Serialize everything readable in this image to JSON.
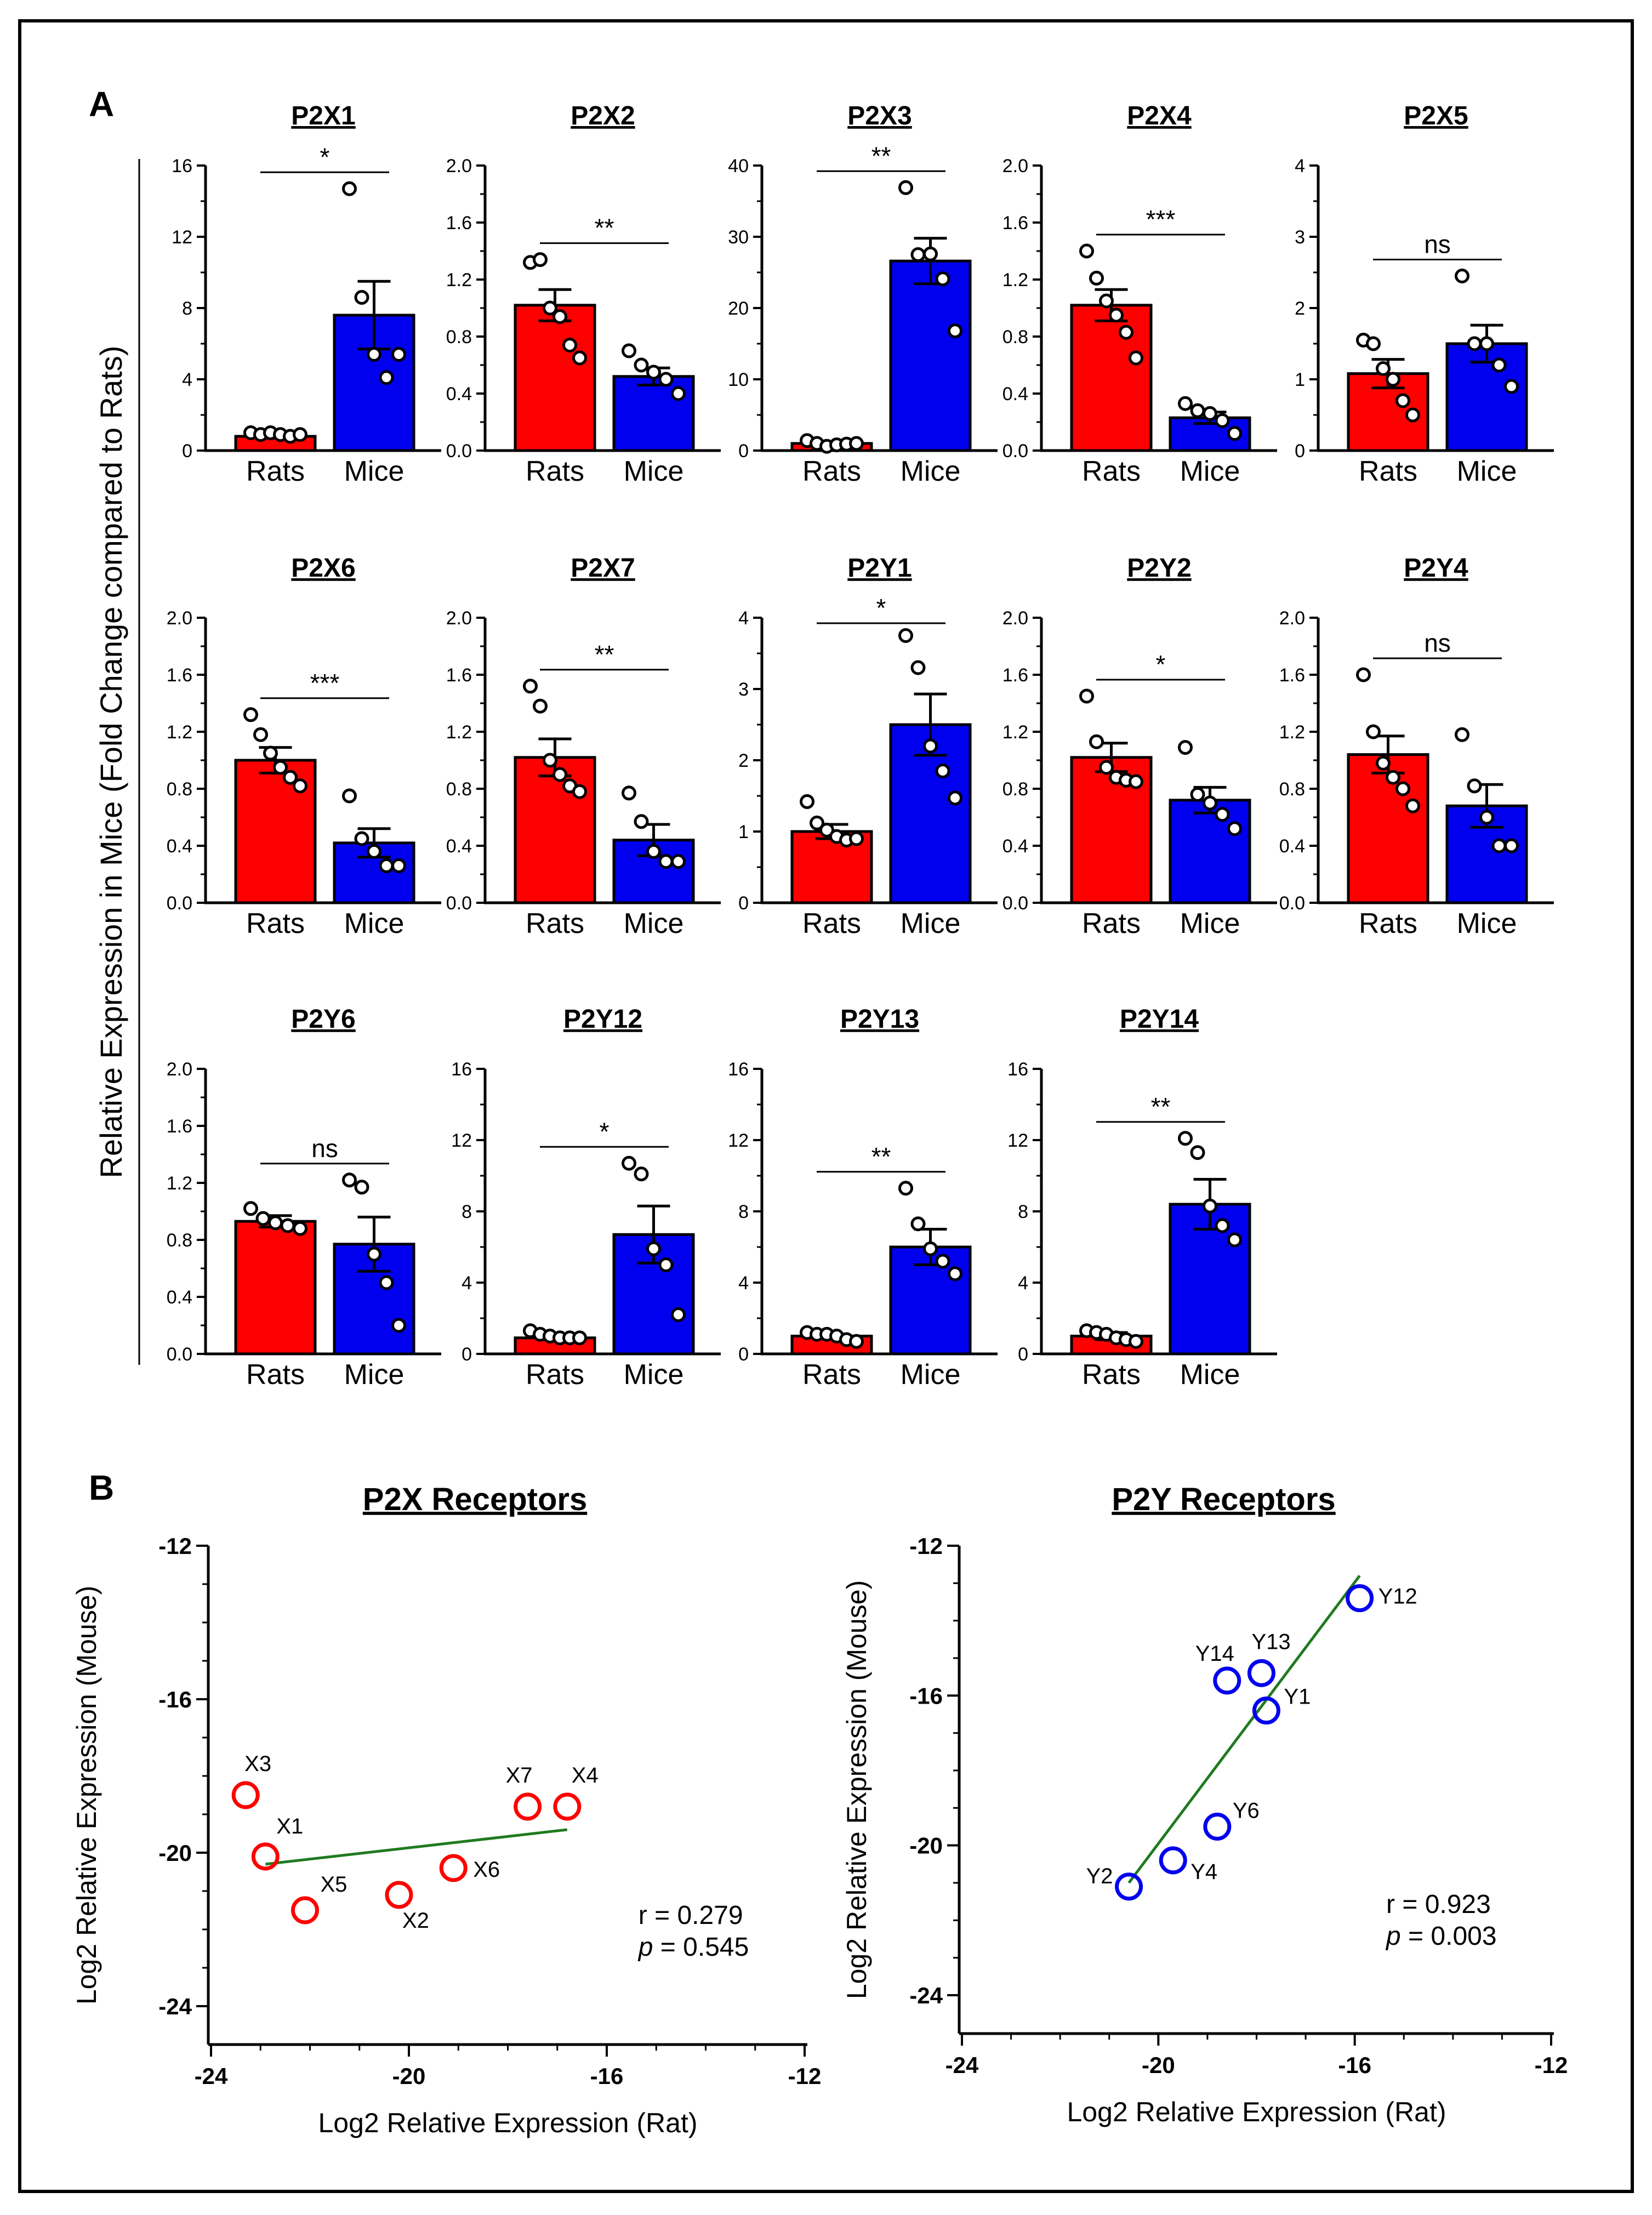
{
  "panel_a_label": "A",
  "panel_b_label": "B",
  "main_ylabel": "Relative Expression in Mice  (Fold Change compared to Rats)",
  "colors": {
    "rats": "#ff0000",
    "mice": "#0000ee",
    "fit": "#1f7a1f"
  },
  "chart_data": [
    {
      "type": "bar",
      "title": "P2X1",
      "categories": [
        "Rats",
        "Mice"
      ],
      "ylim": [
        0,
        16
      ],
      "yticks": [
        "0",
        "4",
        "8",
        "12",
        "16"
      ],
      "significance": "*",
      "series": [
        {
          "name": "Rats",
          "mean": 0.8,
          "sem": 0.1,
          "points": [
            1.0,
            0.9,
            1.0,
            0.9,
            0.8,
            0.9
          ]
        },
        {
          "name": "Mice",
          "mean": 7.6,
          "sem": 1.9,
          "points": [
            14.7,
            8.6,
            5.4,
            4.1,
            5.4
          ]
        }
      ]
    },
    {
      "type": "bar",
      "title": "P2X2",
      "categories": [
        "Rats",
        "Mice"
      ],
      "ylim": [
        0,
        2.0
      ],
      "yticks": [
        "0.0",
        "0.4",
        "0.8",
        "1.2",
        "1.6",
        "2.0"
      ],
      "significance": "**",
      "series": [
        {
          "name": "Rats",
          "mean": 1.02,
          "sem": 0.11,
          "points": [
            1.32,
            1.34,
            1.0,
            0.94,
            0.74,
            0.65
          ]
        },
        {
          "name": "Mice",
          "mean": 0.52,
          "sem": 0.06,
          "points": [
            0.7,
            0.6,
            0.55,
            0.5,
            0.4
          ]
        }
      ]
    },
    {
      "type": "bar",
      "title": "P2X3",
      "categories": [
        "Rats",
        "Mice"
      ],
      "ylim": [
        0,
        40
      ],
      "yticks": [
        "0",
        "10",
        "20",
        "30",
        "40"
      ],
      "significance": "**",
      "series": [
        {
          "name": "Rats",
          "mean": 1.0,
          "sem": 0.2,
          "points": [
            1.4,
            1.0,
            0.6,
            0.8,
            0.9,
            1.0
          ]
        },
        {
          "name": "Mice",
          "mean": 26.6,
          "sem": 3.2,
          "points": [
            36.9,
            27.5,
            27.6,
            24.1,
            16.8
          ]
        }
      ]
    },
    {
      "type": "bar",
      "title": "P2X4",
      "categories": [
        "Rats",
        "Mice"
      ],
      "ylim": [
        0,
        2.0
      ],
      "yticks": [
        "0.0",
        "0.4",
        "0.8",
        "1.2",
        "1.6",
        "2.0"
      ],
      "significance": "***",
      "series": [
        {
          "name": "Rats",
          "mean": 1.02,
          "sem": 0.11,
          "points": [
            1.4,
            1.21,
            1.05,
            0.95,
            0.83,
            0.65
          ]
        },
        {
          "name": "Mice",
          "mean": 0.23,
          "sem": 0.04,
          "points": [
            0.33,
            0.28,
            0.26,
            0.21,
            0.12
          ]
        }
      ]
    },
    {
      "type": "bar",
      "title": "P2X5",
      "categories": [
        "Rats",
        "Mice"
      ],
      "ylim": [
        0,
        4
      ],
      "yticks": [
        "0",
        "1",
        "2",
        "3",
        "4"
      ],
      "significance": "ns",
      "series": [
        {
          "name": "Rats",
          "mean": 1.08,
          "sem": 0.2,
          "points": [
            1.55,
            1.5,
            1.15,
            1.0,
            0.7,
            0.5
          ]
        },
        {
          "name": "Mice",
          "mean": 1.5,
          "sem": 0.26,
          "points": [
            2.45,
            1.5,
            1.5,
            1.2,
            0.9
          ]
        }
      ]
    },
    {
      "type": "bar",
      "title": "P2X6",
      "categories": [
        "Rats",
        "Mice"
      ],
      "ylim": [
        0,
        2.0
      ],
      "yticks": [
        "0.0",
        "0.4",
        "0.8",
        "1.2",
        "1.6",
        "2.0"
      ],
      "significance": "***",
      "series": [
        {
          "name": "Rats",
          "mean": 1.0,
          "sem": 0.09,
          "points": [
            1.32,
            1.18,
            1.05,
            0.95,
            0.88,
            0.82
          ]
        },
        {
          "name": "Mice",
          "mean": 0.42,
          "sem": 0.1,
          "points": [
            0.75,
            0.45,
            0.36,
            0.26,
            0.26
          ]
        }
      ]
    },
    {
      "type": "bar",
      "title": "P2X7",
      "categories": [
        "Rats",
        "Mice"
      ],
      "ylim": [
        0,
        2.0
      ],
      "yticks": [
        "0.0",
        "0.4",
        "0.8",
        "1.2",
        "1.6",
        "2.0"
      ],
      "significance": "**",
      "series": [
        {
          "name": "Rats",
          "mean": 1.02,
          "sem": 0.13,
          "points": [
            1.52,
            1.38,
            1.0,
            0.9,
            0.82,
            0.78
          ]
        },
        {
          "name": "Mice",
          "mean": 0.44,
          "sem": 0.11,
          "points": [
            0.77,
            0.57,
            0.36,
            0.29,
            0.29
          ]
        }
      ]
    },
    {
      "type": "bar",
      "title": "P2Y1",
      "categories": [
        "Rats",
        "Mice"
      ],
      "ylim": [
        0,
        4
      ],
      "yticks": [
        "0",
        "1",
        "2",
        "3",
        "4"
      ],
      "significance": "*",
      "series": [
        {
          "name": "Rats",
          "mean": 1.0,
          "sem": 0.1,
          "points": [
            1.42,
            1.12,
            1.02,
            0.93,
            0.88,
            0.9
          ]
        },
        {
          "name": "Mice",
          "mean": 2.5,
          "sem": 0.43,
          "points": [
            3.75,
            3.3,
            2.2,
            1.85,
            1.47
          ]
        }
      ]
    },
    {
      "type": "bar",
      "title": "P2Y2",
      "categories": [
        "Rats",
        "Mice"
      ],
      "ylim": [
        0,
        2.0
      ],
      "yticks": [
        "0.0",
        "0.4",
        "0.8",
        "1.2",
        "1.6",
        "2.0"
      ],
      "significance": "*",
      "series": [
        {
          "name": "Rats",
          "mean": 1.02,
          "sem": 0.1,
          "points": [
            1.45,
            1.13,
            0.95,
            0.88,
            0.86,
            0.85
          ]
        },
        {
          "name": "Mice",
          "mean": 0.72,
          "sem": 0.09,
          "points": [
            1.09,
            0.76,
            0.7,
            0.62,
            0.52
          ]
        }
      ]
    },
    {
      "type": "bar",
      "title": "P2Y4",
      "categories": [
        "Rats",
        "Mice"
      ],
      "ylim": [
        0,
        2.0
      ],
      "yticks": [
        "0.0",
        "0.4",
        "0.8",
        "1.2",
        "1.6",
        "2.0"
      ],
      "significance": "ns",
      "series": [
        {
          "name": "Rats",
          "mean": 1.04,
          "sem": 0.13,
          "points": [
            1.6,
            1.2,
            0.98,
            0.88,
            0.8,
            0.68
          ]
        },
        {
          "name": "Mice",
          "mean": 0.68,
          "sem": 0.15,
          "points": [
            1.18,
            0.82,
            0.6,
            0.4,
            0.4
          ]
        }
      ]
    },
    {
      "type": "bar",
      "title": "P2Y6",
      "categories": [
        "Rats",
        "Mice"
      ],
      "ylim": [
        0,
        2.0
      ],
      "yticks": [
        "0.0",
        "0.4",
        "0.8",
        "1.2",
        "1.6",
        "2.0"
      ],
      "significance": "ns",
      "series": [
        {
          "name": "Rats",
          "mean": 0.93,
          "sem": 0.04,
          "points": [
            1.02,
            0.95,
            0.92,
            0.9,
            0.88
          ]
        },
        {
          "name": "Mice",
          "mean": 0.77,
          "sem": 0.19,
          "points": [
            1.22,
            1.17,
            0.7,
            0.5,
            0.2
          ]
        }
      ]
    },
    {
      "type": "bar",
      "title": "P2Y12",
      "categories": [
        "Rats",
        "Mice"
      ],
      "ylim": [
        0,
        16
      ],
      "yticks": [
        "0",
        "4",
        "8",
        "12",
        "16"
      ],
      "significance": "*",
      "series": [
        {
          "name": "Rats",
          "mean": 0.9,
          "sem": 0.1,
          "points": [
            1.3,
            1.1,
            1.0,
            0.9,
            0.9,
            0.9
          ]
        },
        {
          "name": "Mice",
          "mean": 6.7,
          "sem": 1.6,
          "points": [
            10.7,
            10.1,
            5.9,
            5.0,
            2.2
          ]
        }
      ]
    },
    {
      "type": "bar",
      "title": "P2Y13",
      "categories": [
        "Rats",
        "Mice"
      ],
      "ylim": [
        0,
        16
      ],
      "yticks": [
        "0",
        "4",
        "8",
        "12",
        "16"
      ],
      "significance": "**",
      "series": [
        {
          "name": "Rats",
          "mean": 1.0,
          "sem": 0.1,
          "points": [
            1.2,
            1.1,
            1.1,
            1.0,
            0.8,
            0.7
          ]
        },
        {
          "name": "Mice",
          "mean": 6.0,
          "sem": 1.0,
          "points": [
            9.3,
            7.3,
            5.9,
            5.2,
            4.5
          ]
        }
      ]
    },
    {
      "type": "bar",
      "title": "P2Y14",
      "categories": [
        "Rats",
        "Mice"
      ],
      "ylim": [
        0,
        16
      ],
      "yticks": [
        "0",
        "4",
        "8",
        "12",
        "16"
      ],
      "significance": "**",
      "series": [
        {
          "name": "Rats",
          "mean": 1.0,
          "sem": 0.2,
          "points": [
            1.3,
            1.2,
            1.1,
            0.9,
            0.8,
            0.7
          ]
        },
        {
          "name": "Mice",
          "mean": 8.4,
          "sem": 1.4,
          "points": [
            12.1,
            11.3,
            8.3,
            7.2,
            6.4
          ]
        }
      ]
    },
    {
      "type": "scatter",
      "title": "P2X Receptors",
      "xlabel": "Log2 Relative Expression (Rat)",
      "ylabel": "Log2 Relative Expression (Mouse)",
      "xlim": [
        -24,
        -12
      ],
      "ylim": [
        -24,
        -12
      ],
      "xticks": [
        "-24",
        "-20",
        "-16",
        "-12"
      ],
      "yticks": [
        "-24",
        "-20",
        "-16",
        "-12"
      ],
      "color": "#ff0000",
      "r_text": "r = 0.279",
      "p_prefix": "p",
      "p_value": " = 0.545",
      "fit": {
        "x": [
          -22.9,
          -16.8
        ],
        "y": [
          -20.3,
          -19.4
        ]
      },
      "points": [
        {
          "label": "X3",
          "x": -23.3,
          "y": -18.5
        },
        {
          "label": "X1",
          "x": -22.9,
          "y": -20.1
        },
        {
          "label": "X5",
          "x": -22.1,
          "y": -21.5
        },
        {
          "label": "X2",
          "x": -20.2,
          "y": -21.1
        },
        {
          "label": "X6",
          "x": -19.1,
          "y": -20.4
        },
        {
          "label": "X7",
          "x": -17.6,
          "y": -18.8
        },
        {
          "label": "X4",
          "x": -16.8,
          "y": -18.8
        }
      ]
    },
    {
      "type": "scatter",
      "title": "P2Y Receptors",
      "xlabel": "Log2 Relative Expression (Rat)",
      "ylabel": "Log2 Relative Expression (Mouse)",
      "xlim": [
        -24,
        -12
      ],
      "ylim": [
        -24,
        -12
      ],
      "xticks": [
        "-24",
        "-20",
        "-16",
        "-12"
      ],
      "yticks": [
        "-24",
        "-20",
        "-16",
        "-12"
      ],
      "color": "#0000ee",
      "r_text": "r = 0.923",
      "p_prefix": "p",
      "p_value": " = 0.003",
      "fit": {
        "x": [
          -20.6,
          -15.9
        ],
        "y": [
          -21.0,
          -12.8
        ]
      },
      "points": [
        {
          "label": "Y12",
          "x": -15.9,
          "y": -13.4
        },
        {
          "label": "Y14",
          "x": -18.6,
          "y": -15.6
        },
        {
          "label": "Y13",
          "x": -17.9,
          "y": -15.4
        },
        {
          "label": "Y1",
          "x": -17.8,
          "y": -16.4
        },
        {
          "label": "Y6",
          "x": -18.8,
          "y": -19.5
        },
        {
          "label": "Y4",
          "x": -19.7,
          "y": -20.4
        },
        {
          "label": "Y2",
          "x": -20.6,
          "y": -21.1
        }
      ]
    }
  ]
}
